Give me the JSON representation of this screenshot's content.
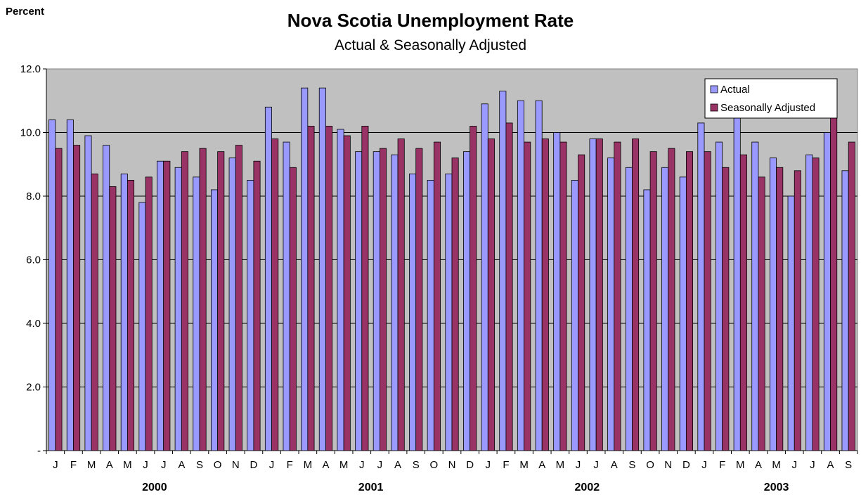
{
  "chart_data": {
    "type": "bar",
    "title": "Nova Scotia Unemployment Rate",
    "subtitle": "Actual & Seasonally Adjusted",
    "ylabel": "Percent",
    "xlabel": "",
    "ylim": [
      0,
      12
    ],
    "y_ticks": [
      "-",
      "2.0",
      "4.0",
      "6.0",
      "8.0",
      "10.0",
      "12.0"
    ],
    "grid": "horizontal",
    "legend_position": "top-right",
    "categories": [
      "J",
      "F",
      "M",
      "A",
      "M",
      "J",
      "J",
      "A",
      "S",
      "O",
      "N",
      "D",
      "J",
      "F",
      "M",
      "A",
      "M",
      "J",
      "J",
      "A",
      "S",
      "O",
      "N",
      "D",
      "J",
      "F",
      "M",
      "A",
      "M",
      "J",
      "J",
      "A",
      "S",
      "O",
      "N",
      "D",
      "J",
      "F",
      "M",
      "A",
      "M",
      "J",
      "J",
      "A",
      "S"
    ],
    "year_groups": [
      {
        "label": "2000",
        "start": 0,
        "end": 11
      },
      {
        "label": "2001",
        "start": 12,
        "end": 23
      },
      {
        "label": "2002",
        "start": 24,
        "end": 35
      },
      {
        "label": "2003",
        "start": 36,
        "end": 44
      }
    ],
    "series": [
      {
        "name": "Actual",
        "color": "#9999ff",
        "values": [
          10.4,
          10.4,
          9.9,
          9.6,
          8.7,
          7.8,
          9.1,
          8.9,
          8.6,
          8.2,
          9.2,
          8.5,
          10.8,
          9.7,
          11.4,
          11.4,
          10.1,
          9.4,
          9.4,
          9.3,
          8.7,
          8.5,
          8.7,
          9.4,
          10.9,
          11.3,
          11.0,
          11.0,
          10.0,
          8.5,
          9.8,
          9.2,
          8.9,
          8.2,
          8.9,
          8.6,
          10.3,
          9.7,
          10.5,
          9.7,
          9.2,
          8.0,
          9.3,
          10.0,
          8.8
        ]
      },
      {
        "name": "Seasonally Adjusted",
        "color": "#993366",
        "values": [
          9.5,
          9.6,
          8.7,
          8.3,
          8.5,
          8.6,
          9.1,
          9.4,
          9.5,
          9.4,
          9.6,
          9.1,
          9.8,
          8.9,
          10.2,
          10.2,
          9.9,
          10.2,
          9.5,
          9.8,
          9.5,
          9.7,
          9.2,
          10.2,
          9.8,
          10.3,
          9.7,
          9.8,
          9.7,
          9.3,
          9.8,
          9.7,
          9.8,
          9.4,
          9.5,
          9.4,
          9.4,
          8.9,
          9.3,
          8.6,
          8.9,
          8.8,
          9.2,
          10.5,
          9.7
        ]
      }
    ],
    "colors": {
      "plot_background": "#c0c0c0"
    }
  }
}
